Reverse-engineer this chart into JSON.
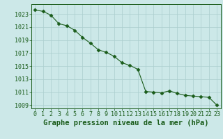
{
  "title": "Graphe pression niveau de la mer (hPa)",
  "x_values": [
    0,
    1,
    2,
    3,
    4,
    5,
    6,
    7,
    8,
    9,
    10,
    11,
    12,
    13,
    14,
    15,
    16,
    17,
    18,
    19,
    20,
    21,
    22,
    23
  ],
  "y_values": [
    1023.6,
    1023.4,
    1022.8,
    1021.5,
    1021.2,
    1020.5,
    1019.4,
    1018.5,
    1017.5,
    1017.1,
    1016.5,
    1015.5,
    1015.1,
    1014.5,
    1011.1,
    1011.0,
    1010.9,
    1011.2,
    1010.8,
    1010.5,
    1010.4,
    1010.3,
    1010.2,
    1009.0
  ],
  "line_color": "#1a5c1a",
  "marker": "D",
  "marker_size": 2.5,
  "background_color": "#cce8e8",
  "grid_color": "#aacece",
  "ylim": [
    1008.5,
    1024.5
  ],
  "yticks": [
    1009,
    1011,
    1013,
    1015,
    1017,
    1019,
    1021,
    1023
  ],
  "xticks": [
    0,
    1,
    2,
    3,
    4,
    5,
    6,
    7,
    8,
    9,
    10,
    11,
    12,
    13,
    14,
    15,
    16,
    17,
    18,
    19,
    20,
    21,
    22,
    23
  ],
  "title_fontsize": 7.5,
  "tick_fontsize": 6,
  "title_fontweight": "bold",
  "linewidth": 0.8
}
